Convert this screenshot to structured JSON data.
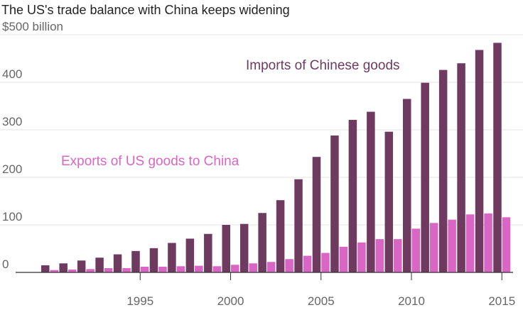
{
  "chart_data": {
    "type": "bar",
    "title": "The US's trade balance with China keeps widening",
    "ylim": [
      0,
      500
    ],
    "grid": true,
    "y_ticks": [
      {
        "value": 0,
        "label": "0"
      },
      {
        "value": 100,
        "label": "100"
      },
      {
        "value": 200,
        "label": "200"
      },
      {
        "value": 300,
        "label": "300"
      },
      {
        "value": 400,
        "label": "400"
      },
      {
        "value": 500,
        "label": "$500 billion"
      }
    ],
    "x_ticks": [
      {
        "value": 1995,
        "label": "1995"
      },
      {
        "value": 2000,
        "label": "2000"
      },
      {
        "value": 2005,
        "label": "2005"
      },
      {
        "value": 2010,
        "label": "2010"
      },
      {
        "value": 2015,
        "label": "2015"
      }
    ],
    "categories": [
      1990,
      1991,
      1992,
      1993,
      1994,
      1995,
      1996,
      1997,
      1998,
      1999,
      2000,
      2001,
      2002,
      2003,
      2004,
      2005,
      2006,
      2007,
      2008,
      2009,
      2010,
      2011,
      2012,
      2013,
      2014,
      2015
    ],
    "series": [
      {
        "name": "Imports of Chinese goods",
        "color": "#6e3a5f",
        "values": [
          15,
          19,
          25,
          31,
          38,
          45,
          51,
          62,
          71,
          81,
          100,
          102,
          125,
          152,
          196,
          243,
          288,
          321,
          338,
          296,
          365,
          399,
          426,
          440,
          468,
          483
        ]
      },
      {
        "name": "Exports of US goods to China",
        "color": "#d966c4",
        "values": [
          5,
          6,
          7,
          9,
          9,
          12,
          12,
          13,
          14,
          13,
          16,
          19,
          22,
          28,
          35,
          41,
          54,
          63,
          70,
          70,
          92,
          104,
          111,
          122,
          124,
          116
        ]
      }
    ],
    "annotations": [
      {
        "text": "Imports of Chinese goods",
        "series": 0
      },
      {
        "text": "Exports of US goods to China",
        "series": 1
      }
    ]
  }
}
